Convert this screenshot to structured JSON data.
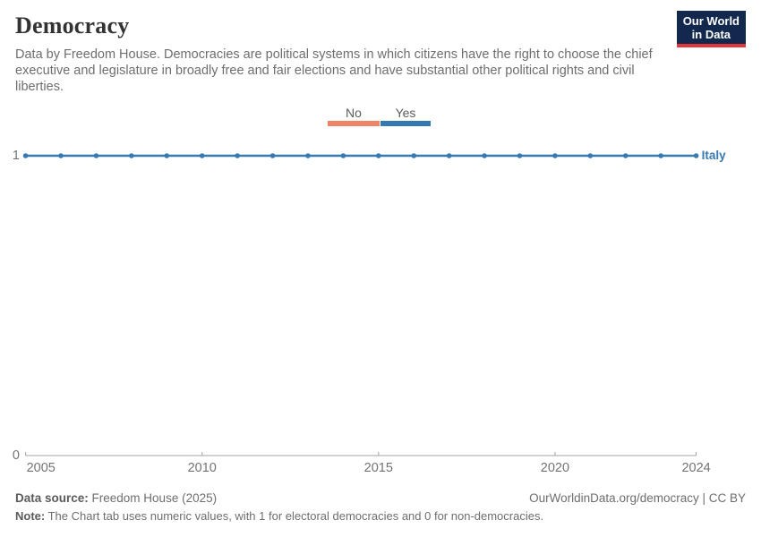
{
  "header": {
    "title": "Democracy",
    "subtitle": "Data by Freedom House. Democracies are political systems in which citizens have the right to choose the chief executive and legislature in broadly free and fair elections and have substantial other political rights and civil liberties.",
    "logo_line1": "Our World",
    "logo_line2": "in Data"
  },
  "legend": {
    "items": [
      {
        "label": "No",
        "color": "#ee8465"
      },
      {
        "label": "Yes",
        "color": "#3179af"
      }
    ]
  },
  "chart_data": {
    "type": "line",
    "title": "Democracy",
    "xlabel": "",
    "ylabel": "",
    "x": [
      2005,
      2006,
      2007,
      2008,
      2009,
      2010,
      2011,
      2012,
      2013,
      2014,
      2015,
      2016,
      2017,
      2018,
      2019,
      2020,
      2021,
      2022,
      2023,
      2024
    ],
    "series": [
      {
        "name": "Italy",
        "color": "#3779b1",
        "values": [
          1,
          1,
          1,
          1,
          1,
          1,
          1,
          1,
          1,
          1,
          1,
          1,
          1,
          1,
          1,
          1,
          1,
          1,
          1,
          1
        ]
      }
    ],
    "xlim": [
      2005,
      2024
    ],
    "ylim": [
      0,
      1
    ],
    "xticks": [
      2005,
      2010,
      2015,
      2020,
      2024
    ],
    "yticks": [
      0,
      1
    ],
    "grid": false,
    "legend_position": "top-center",
    "axis_color": "#a3a3a3"
  },
  "footer": {
    "data_source_label": "Data source:",
    "data_source_value": " Freedom House (2025)",
    "attribution": "OurWorldinData.org/democracy | CC BY",
    "note_label": "Note:",
    "note_value": " The Chart tab uses numeric values, with 1 for electoral democracies and 0 for non-democracies."
  }
}
